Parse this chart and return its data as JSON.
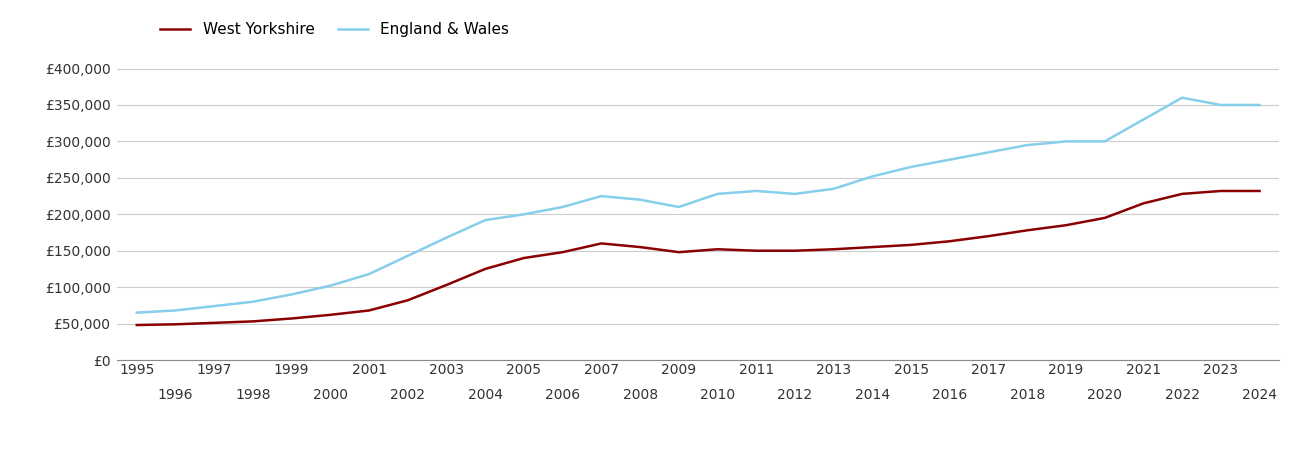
{
  "west_yorkshire": {
    "years": [
      1995,
      1996,
      1997,
      1998,
      1999,
      2000,
      2001,
      2002,
      2003,
      2004,
      2005,
      2006,
      2007,
      2008,
      2009,
      2010,
      2011,
      2012,
      2013,
      2014,
      2015,
      2016,
      2017,
      2018,
      2019,
      2020,
      2021,
      2022,
      2023,
      2024
    ],
    "values": [
      48000,
      49000,
      51000,
      53000,
      57000,
      62000,
      68000,
      82000,
      103000,
      125000,
      140000,
      148000,
      160000,
      155000,
      148000,
      152000,
      150000,
      150000,
      152000,
      155000,
      158000,
      163000,
      170000,
      178000,
      185000,
      195000,
      215000,
      228000,
      232000,
      232000
    ]
  },
  "england_wales": {
    "years": [
      1995,
      1996,
      1997,
      1998,
      1999,
      2000,
      2001,
      2002,
      2003,
      2004,
      2005,
      2006,
      2007,
      2008,
      2009,
      2010,
      2011,
      2012,
      2013,
      2014,
      2015,
      2016,
      2017,
      2018,
      2019,
      2020,
      2021,
      2022,
      2023,
      2024
    ],
    "values": [
      65000,
      68000,
      74000,
      80000,
      90000,
      102000,
      118000,
      143000,
      168000,
      192000,
      200000,
      210000,
      225000,
      220000,
      210000,
      228000,
      232000,
      228000,
      235000,
      252000,
      265000,
      275000,
      285000,
      295000,
      300000,
      300000,
      330000,
      360000,
      350000,
      350000
    ]
  },
  "wy_color": "#8B0000",
  "ew_color": "#87CEEB",
  "wy_label": "West Yorkshire",
  "ew_label": "England & Wales",
  "ylim": [
    0,
    420000
  ],
  "yticks": [
    0,
    50000,
    100000,
    150000,
    200000,
    250000,
    300000,
    350000,
    400000
  ],
  "background_color": "#ffffff",
  "grid_color": "#cccccc",
  "line_width": 1.8,
  "odd_years": [
    1995,
    1997,
    1999,
    2001,
    2003,
    2005,
    2007,
    2009,
    2011,
    2013,
    2015,
    2017,
    2019,
    2021,
    2023
  ],
  "even_years": [
    1996,
    1998,
    2000,
    2002,
    2004,
    2006,
    2008,
    2010,
    2012,
    2014,
    2016,
    2018,
    2020,
    2022,
    2024
  ]
}
